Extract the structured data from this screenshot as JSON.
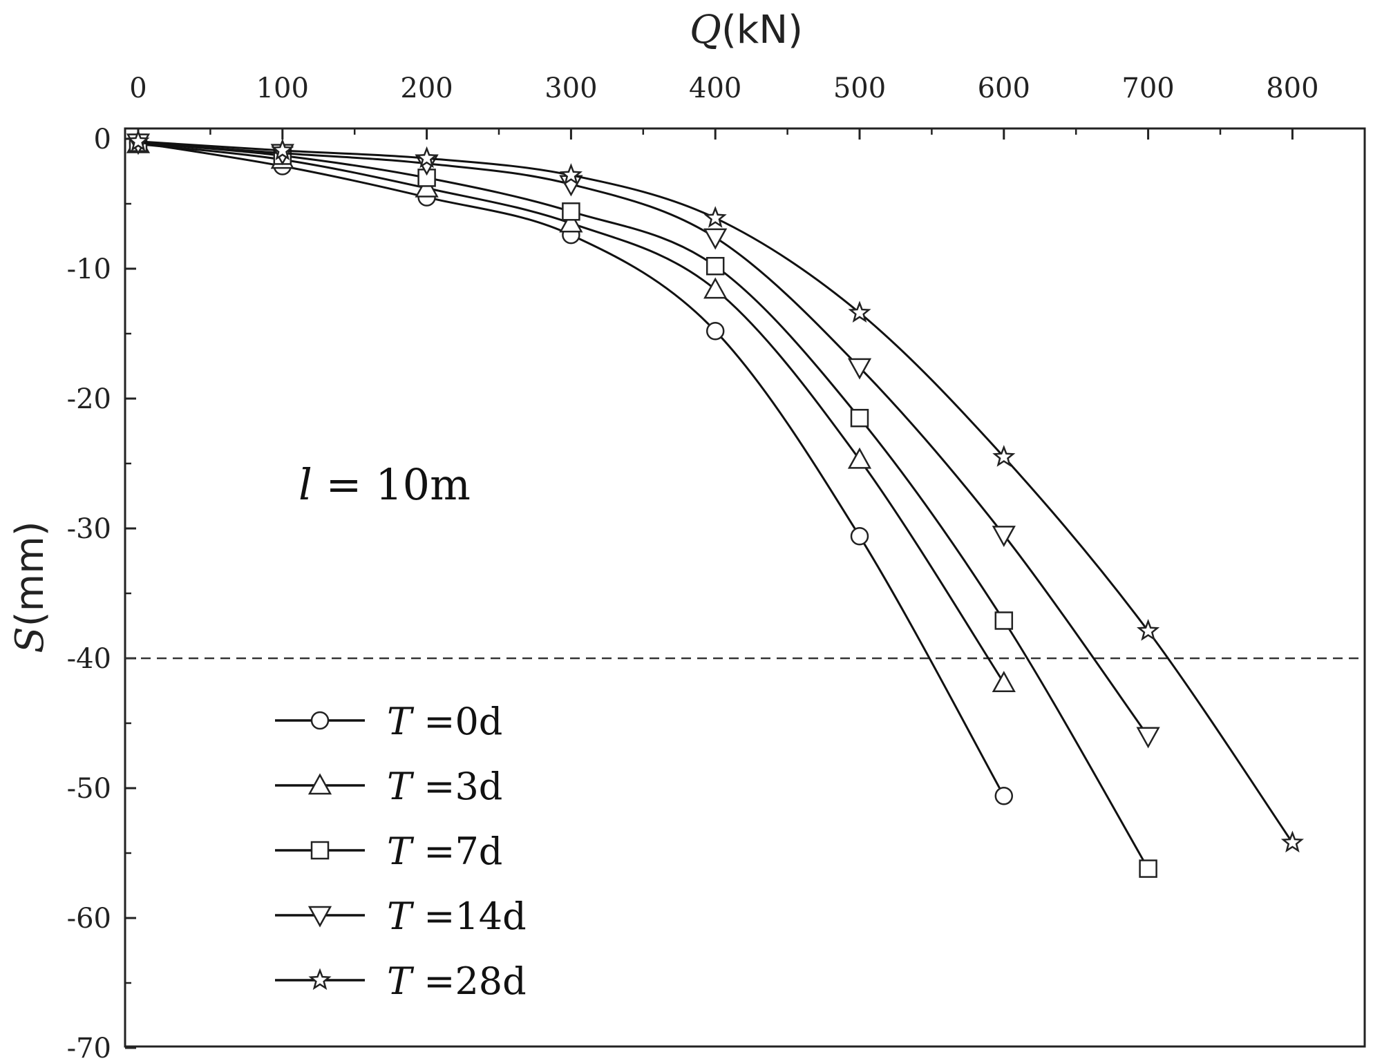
{
  "chart_data": {
    "type": "line",
    "xlabel": {
      "var": "Q",
      "unit": "(kN)"
    },
    "ylabel": {
      "var": "S",
      "unit": "(mm)"
    },
    "x_axis_position": "top",
    "xlim": [
      0,
      850
    ],
    "ylim": [
      -70,
      0
    ],
    "x_ticks": [
      0,
      100,
      200,
      300,
      400,
      500,
      600,
      700,
      800
    ],
    "y_ticks": [
      0,
      -10,
      -20,
      -30,
      -40,
      -50,
      -60,
      -70
    ],
    "annotation": {
      "var": "l",
      "text": " = 10m"
    },
    "reference_line": {
      "y": -40,
      "style": "dashed"
    },
    "legend_placement": "bottom-left",
    "series": [
      {
        "legend_var": "T",
        "legend_text": " =0d",
        "marker": "circle",
        "x": [
          0,
          100,
          200,
          300,
          400,
          500,
          600
        ],
        "y": [
          -0.3,
          -2.1,
          -4.5,
          -7.4,
          -14.8,
          -30.6,
          -50.6
        ]
      },
      {
        "legend_var": "T",
        "legend_text": " =3d",
        "marker": "triangle-up",
        "x": [
          0,
          100,
          200,
          300,
          400,
          500,
          600
        ],
        "y": [
          -0.4,
          -1.6,
          -3.8,
          -6.5,
          -11.6,
          -24.7,
          -41.9
        ]
      },
      {
        "legend_var": "T",
        "legend_text": " =7d",
        "marker": "square",
        "x": [
          0,
          100,
          200,
          300,
          400,
          500,
          600,
          700
        ],
        "y": [
          -0.3,
          -1.3,
          -3.0,
          -5.6,
          -9.8,
          -21.5,
          -37.1,
          -56.2
        ]
      },
      {
        "legend_var": "T",
        "legend_text": " =14d",
        "marker": "triangle-down",
        "x": [
          0,
          100,
          200,
          300,
          400,
          500,
          600,
          700
        ],
        "y": [
          -0.3,
          -1.1,
          -1.9,
          -3.5,
          -7.6,
          -17.6,
          -30.5,
          -46.0
        ]
      },
      {
        "legend_var": "T",
        "legend_text": " =28d",
        "marker": "star",
        "x": [
          0,
          100,
          200,
          300,
          400,
          500,
          600,
          700,
          800
        ],
        "y": [
          -0.2,
          -0.9,
          -1.5,
          -2.8,
          -6.1,
          -13.4,
          -24.5,
          -37.9,
          -54.2
        ]
      }
    ]
  }
}
